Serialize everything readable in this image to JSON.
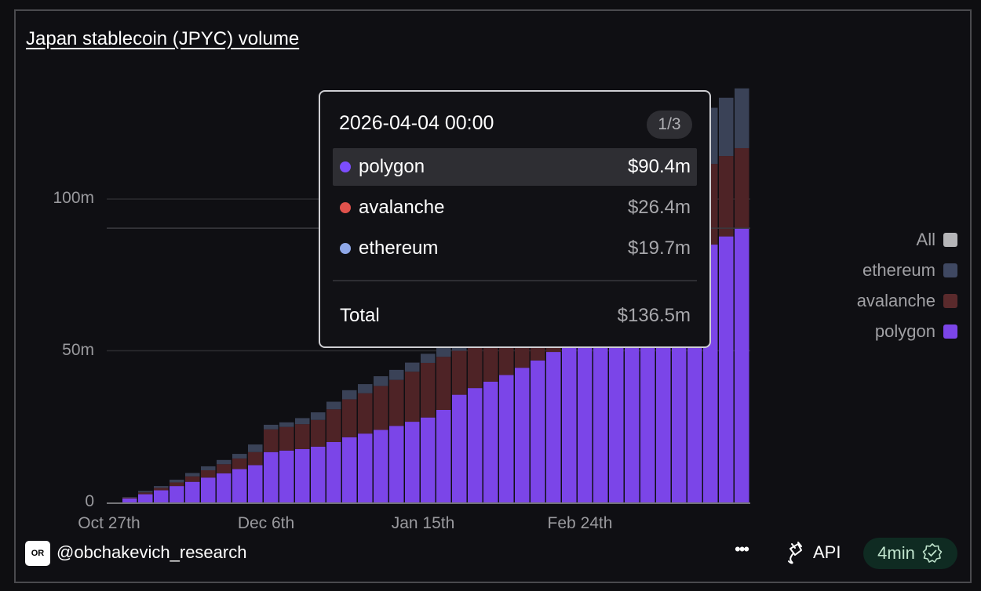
{
  "title": "Japan stablecoin (JPYC) volume",
  "tooltip": {
    "date": "2026-04-04 00:00",
    "page": "1/3",
    "rows": [
      {
        "name": "polygon",
        "value": "$90.4m",
        "color": "#7c4dff"
      },
      {
        "name": "avalanche",
        "value": "$26.4m",
        "color": "#e0524c"
      },
      {
        "name": "ethereum",
        "value": "$19.7m",
        "color": "#8fa8e8"
      }
    ],
    "total_label": "Total",
    "total_value": "$136.5m"
  },
  "legend": [
    {
      "label": "All",
      "color": "#b5b5b8"
    },
    {
      "label": "ethereum",
      "color": "#3f4862"
    },
    {
      "label": "avalanche",
      "color": "#5a2a2c"
    },
    {
      "label": "polygon",
      "color": "#7b45e8"
    }
  ],
  "footer": {
    "logo": "OR",
    "handle": "@obchakevich_research",
    "more": "•••",
    "api": "API",
    "freshness": "4min"
  },
  "chart_data": {
    "type": "bar",
    "stacked": true,
    "title": "Japan stablecoin (JPYC) volume",
    "xlabel": "",
    "ylabel": "",
    "ylim": [
      0,
      140
    ],
    "yticks": [
      {
        "value": 0,
        "label": "0"
      },
      {
        "value": 50,
        "label": "50m"
      },
      {
        "value": 100,
        "label": "100m"
      }
    ],
    "xticks": [
      {
        "index": 0,
        "label": "Oct 27th"
      },
      {
        "index": 10,
        "label": "Dec 6th"
      },
      {
        "index": 20,
        "label": "Jan 15th"
      },
      {
        "index": 30,
        "label": "Feb 24th"
      }
    ],
    "hover_value": 90.4,
    "x": [
      "2025-10-27",
      "2025-10-31",
      "2025-11-04",
      "2025-11-08",
      "2025-11-12",
      "2025-11-16",
      "2025-11-20",
      "2025-11-24",
      "2025-11-28",
      "2025-12-02",
      "2025-12-06",
      "2025-12-10",
      "2025-12-14",
      "2025-12-18",
      "2025-12-22",
      "2025-12-26",
      "2025-12-30",
      "2026-01-03",
      "2026-01-07",
      "2026-01-11",
      "2026-01-15",
      "2026-01-19",
      "2026-01-23",
      "2026-01-27",
      "2026-01-31",
      "2026-02-04",
      "2026-02-08",
      "2026-02-12",
      "2026-02-16",
      "2026-02-20",
      "2026-02-24",
      "2026-02-28",
      "2026-03-04",
      "2026-03-08",
      "2026-03-12",
      "2026-03-16",
      "2026-03-20",
      "2026-03-24",
      "2026-03-28",
      "2026-04-01",
      "2026-04-04"
    ],
    "series": [
      {
        "name": "polygon",
        "color": "#7b45e8",
        "values": [
          0,
          1.3,
          2.7,
          4,
          5.4,
          6.8,
          8.2,
          9.6,
          11,
          12.3,
          16.6,
          17.1,
          17.6,
          18.4,
          19.9,
          21.5,
          22.7,
          23.9,
          25.2,
          26.6,
          28,
          30.5,
          35.5,
          37.7,
          39.8,
          42,
          44.4,
          46.8,
          49.6,
          52.8,
          56,
          59.3,
          62.7,
          65.5,
          68.6,
          72,
          77,
          82,
          85,
          87.7,
          90.4
        ]
      },
      {
        "name": "avalanche",
        "color": "#4e2326",
        "values": [
          0,
          0.3,
          0.6,
          0.8,
          1.2,
          1.8,
          2.4,
          3,
          3.5,
          4.3,
          7.5,
          7.8,
          8.2,
          8.8,
          10.8,
          12.5,
          13.3,
          14.5,
          15.2,
          16.5,
          18,
          17.5,
          14.5,
          14.8,
          15.5,
          16,
          16.5,
          17,
          17.6,
          18.2,
          19,
          20,
          21,
          22,
          23,
          24.5,
          26,
          27,
          26.6,
          26.5,
          26.4
        ]
      },
      {
        "name": "ethereum",
        "color": "#3a4257",
        "values": [
          0,
          0.2,
          0.5,
          0.6,
          0.9,
          1.1,
          1.3,
          1.4,
          1.5,
          2.5,
          1.5,
          1.5,
          2,
          2.5,
          2.5,
          3,
          3,
          3.2,
          3.3,
          3,
          3,
          3,
          3,
          3.5,
          4,
          4.5,
          5.5,
          6.5,
          7.5,
          8.5,
          9.5,
          10.5,
          11.5,
          12.5,
          13.5,
          14.5,
          16,
          17.5,
          18.5,
          19.2,
          19.7
        ]
      }
    ]
  }
}
